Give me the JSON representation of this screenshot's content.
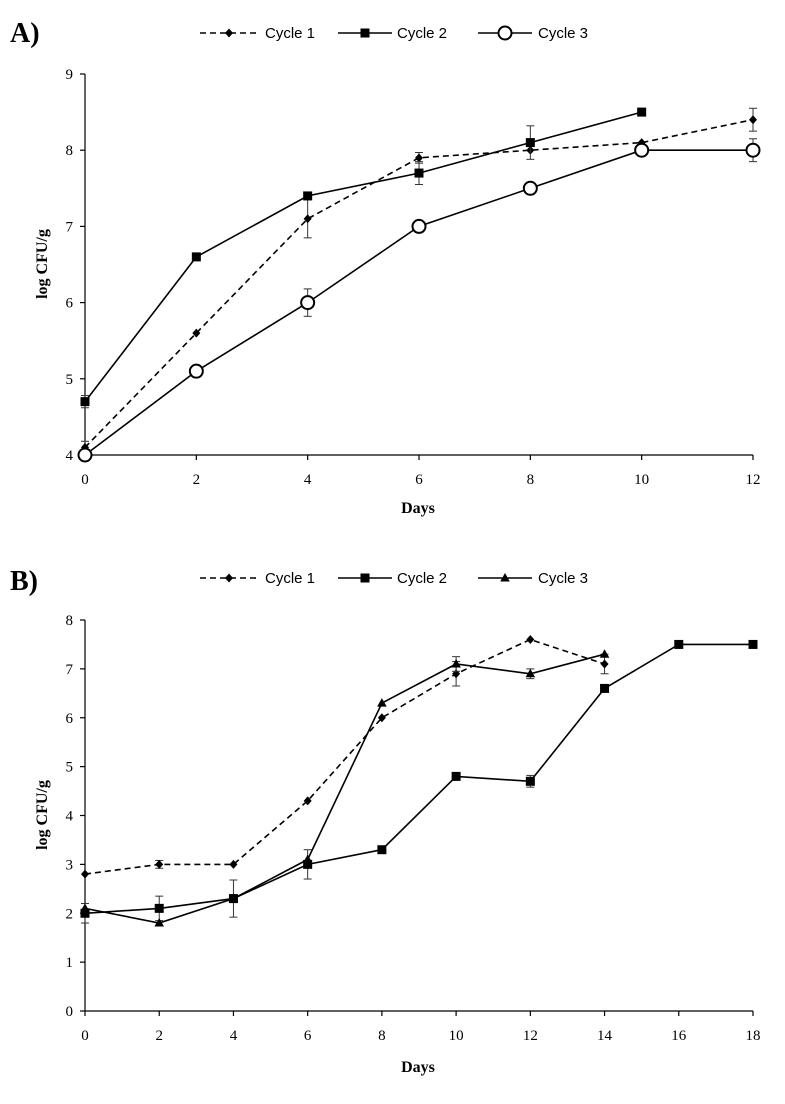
{
  "chart_data": [
    {
      "id": "A",
      "type": "line",
      "panel_label": "A)",
      "xlabel": "Days",
      "ylabel": "log CFU/g",
      "xlim": [
        0,
        12
      ],
      "ylim": [
        4,
        9
      ],
      "xticks": [
        0,
        2,
        4,
        6,
        8,
        10,
        12
      ],
      "yticks": [
        4,
        5,
        6,
        7,
        8,
        9
      ],
      "legend": "top-center",
      "grid": false,
      "series": [
        {
          "name": "Cycle 1",
          "marker": "diamond",
          "dashed": true,
          "points": [
            {
              "x": 0,
              "y": 4.1,
              "err": 0.08
            },
            {
              "x": 2,
              "y": 5.6
            },
            {
              "x": 4,
              "y": 7.1,
              "err": 0.25
            },
            {
              "x": 6,
              "y": 7.9,
              "err": 0.07
            },
            {
              "x": 8,
              "y": 8.0
            },
            {
              "x": 10,
              "y": 8.1
            },
            {
              "x": 12,
              "y": 8.4,
              "err": 0.15
            }
          ]
        },
        {
          "name": "Cycle 2",
          "marker": "square",
          "dashed": false,
          "points": [
            {
              "x": 0,
              "y": 4.7,
              "err": 0.08
            },
            {
              "x": 2,
              "y": 6.6
            },
            {
              "x": 4,
              "y": 7.4
            },
            {
              "x": 6,
              "y": 7.7,
              "err": 0.15
            },
            {
              "x": 8,
              "y": 8.1,
              "err": 0.22
            },
            {
              "x": 10,
              "y": 8.5
            }
          ]
        },
        {
          "name": "Cycle 3",
          "marker": "circle-open",
          "dashed": false,
          "points": [
            {
              "x": 0,
              "y": 4.0
            },
            {
              "x": 2,
              "y": 5.1
            },
            {
              "x": 4,
              "y": 6.0,
              "err": 0.18
            },
            {
              "x": 6,
              "y": 7.0
            },
            {
              "x": 8,
              "y": 7.5
            },
            {
              "x": 10,
              "y": 8.0
            },
            {
              "x": 12,
              "y": 8.0,
              "err": 0.15
            }
          ]
        }
      ]
    },
    {
      "id": "B",
      "type": "line",
      "panel_label": "B)",
      "xlabel": "Days",
      "ylabel": "log CFU/g",
      "xlim": [
        0,
        18
      ],
      "ylim": [
        0,
        8
      ],
      "xticks": [
        0,
        2,
        4,
        6,
        8,
        10,
        12,
        14,
        16,
        18
      ],
      "yticks": [
        0,
        1,
        2,
        3,
        4,
        5,
        6,
        7,
        8
      ],
      "legend": "top-center",
      "grid": false,
      "series": [
        {
          "name": "Cycle 1",
          "marker": "diamond",
          "dashed": true,
          "points": [
            {
              "x": 0,
              "y": 2.8
            },
            {
              "x": 2,
              "y": 3.0,
              "err": 0.08
            },
            {
              "x": 4,
              "y": 3.0
            },
            {
              "x": 6,
              "y": 4.3
            },
            {
              "x": 8,
              "y": 6.0
            },
            {
              "x": 10,
              "y": 6.9,
              "err": 0.25
            },
            {
              "x": 12,
              "y": 7.6
            },
            {
              "x": 14,
              "y": 7.1,
              "err": 0.2
            }
          ]
        },
        {
          "name": "Cycle 2",
          "marker": "square",
          "dashed": false,
          "points": [
            {
              "x": 0,
              "y": 2.0,
              "err": 0.2
            },
            {
              "x": 2,
              "y": 2.1,
              "err": 0.25
            },
            {
              "x": 4,
              "y": 2.3,
              "err": 0.38
            },
            {
              "x": 6,
              "y": 3.0,
              "err": 0.3
            },
            {
              "x": 8,
              "y": 3.3
            },
            {
              "x": 10,
              "y": 4.8
            },
            {
              "x": 12,
              "y": 4.7,
              "err": 0.12
            },
            {
              "x": 14,
              "y": 6.6
            },
            {
              "x": 16,
              "y": 7.5
            },
            {
              "x": 18,
              "y": 7.5
            }
          ]
        },
        {
          "name": "Cycle 3",
          "marker": "triangle",
          "dashed": false,
          "points": [
            {
              "x": 0,
              "y": 2.1
            },
            {
              "x": 2,
              "y": 1.8
            },
            {
              "x": 4,
              "y": 2.3
            },
            {
              "x": 6,
              "y": 3.1
            },
            {
              "x": 8,
              "y": 6.3
            },
            {
              "x": 10,
              "y": 7.1,
              "err": 0.15
            },
            {
              "x": 12,
              "y": 6.9,
              "err": 0.1
            },
            {
              "x": 14,
              "y": 7.3
            }
          ]
        }
      ]
    }
  ]
}
